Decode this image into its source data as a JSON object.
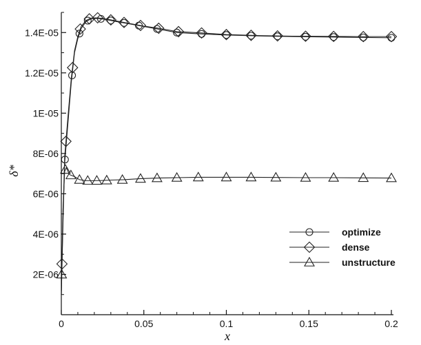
{
  "chart_data": {
    "type": "line",
    "xlabel": "x",
    "ylabel": "δ*",
    "xlim": [
      0,
      0.2
    ],
    "ylim": [
      0,
      1.5e-05
    ],
    "x_ticks": [
      0,
      0.05,
      0.1,
      0.15,
      0.2
    ],
    "x_tick_labels": [
      "0",
      "0.05",
      "0.1",
      "0.15",
      "0.2"
    ],
    "y_ticks": [
      2e-06,
      4e-06,
      6e-06,
      8e-06,
      1e-05,
      1.2e-05,
      1.4e-05
    ],
    "y_tick_labels": [
      "2E-06",
      "4E-06",
      "6E-06",
      "8E-06",
      "1E-05",
      "1.2E-05",
      "1.4E-05"
    ],
    "grid": false,
    "legend_position": "lower-right",
    "series": [
      {
        "name": "optimize",
        "marker": "circle",
        "color": "#222222",
        "x": [
          0,
          0.001,
          0.002,
          0.004,
          0.006,
          0.008,
          0.01,
          0.012,
          0.015,
          0.018,
          0.022,
          0.027,
          0.033,
          0.04,
          0.05,
          0.06,
          0.07,
          0.085,
          0.1,
          0.12,
          0.14,
          0.16,
          0.18,
          0.2
        ],
        "y": [
          1e-06,
          4.5e-06,
          7.5e-06,
          9.5e-06,
          1.15e-05,
          1.3e-05,
          1.37e-05,
          1.42e-05,
          1.455e-05,
          1.468e-05,
          1.47e-05,
          1.465e-05,
          1.455e-05,
          1.445e-05,
          1.43e-05,
          1.415e-05,
          1.4e-05,
          1.393e-05,
          1.388e-05,
          1.383e-05,
          1.38e-05,
          1.378e-05,
          1.376e-05,
          1.374e-05
        ],
        "marker_x": [
          0.0022,
          0.0065,
          0.011,
          0.016,
          0.024,
          0.03,
          0.038,
          0.047,
          0.058,
          0.07,
          0.085,
          0.1,
          0.115,
          0.131,
          0.148,
          0.165,
          0.183,
          0.2
        ]
      },
      {
        "name": "dense",
        "marker": "diamond",
        "color": "#222222",
        "x": [
          0,
          0.001,
          0.002,
          0.004,
          0.006,
          0.008,
          0.01,
          0.012,
          0.015,
          0.018,
          0.022,
          0.027,
          0.033,
          0.04,
          0.05,
          0.06,
          0.07,
          0.085,
          0.1,
          0.12,
          0.14,
          0.16,
          0.18,
          0.2
        ],
        "y": [
          1e-06,
          4.8e-06,
          7.8e-06,
          9.8e-06,
          1.17e-05,
          1.31e-05,
          1.38e-05,
          1.43e-05,
          1.46e-05,
          1.472e-05,
          1.473e-05,
          1.468e-05,
          1.458e-05,
          1.447e-05,
          1.432e-05,
          1.42e-05,
          1.405e-05,
          1.398e-05,
          1.39e-05,
          1.385e-05,
          1.382e-05,
          1.381e-05,
          1.38e-05,
          1.38e-05
        ],
        "marker_x": [
          0.0004,
          0.0028,
          0.0068,
          0.0115,
          0.017,
          0.022,
          0.03,
          0.038,
          0.048,
          0.059,
          0.071,
          0.085,
          0.1,
          0.115,
          0.131,
          0.148,
          0.165,
          0.183,
          0.2
        ]
      },
      {
        "name": "unstructure",
        "marker": "triangle",
        "color": "#222222",
        "x": [
          0,
          0.001,
          0.002,
          0.003,
          0.005,
          0.008,
          0.011,
          0.015,
          0.02,
          0.025,
          0.03,
          0.038,
          0.048,
          0.058,
          0.07,
          0.083,
          0.1,
          0.115,
          0.13,
          0.148,
          0.165,
          0.183,
          0.2
        ],
        "y": [
          1.2e-06,
          5.2e-06,
          7.1e-06,
          7.3e-06,
          6.95e-06,
          6.85e-06,
          6.7e-06,
          6.65e-06,
          6.65e-06,
          6.66e-06,
          6.68e-06,
          6.7e-06,
          6.75e-06,
          6.78e-06,
          6.8e-06,
          6.82e-06,
          6.82e-06,
          6.82e-06,
          6.81e-06,
          6.8e-06,
          6.8e-06,
          6.79e-06,
          6.78e-06
        ],
        "marker_x": [
          0.0002,
          0.0025,
          0.0058,
          0.011,
          0.016,
          0.0215,
          0.0275,
          0.037,
          0.048,
          0.058,
          0.07,
          0.083,
          0.1,
          0.115,
          0.13,
          0.148,
          0.165,
          0.183,
          0.2
        ]
      }
    ]
  }
}
